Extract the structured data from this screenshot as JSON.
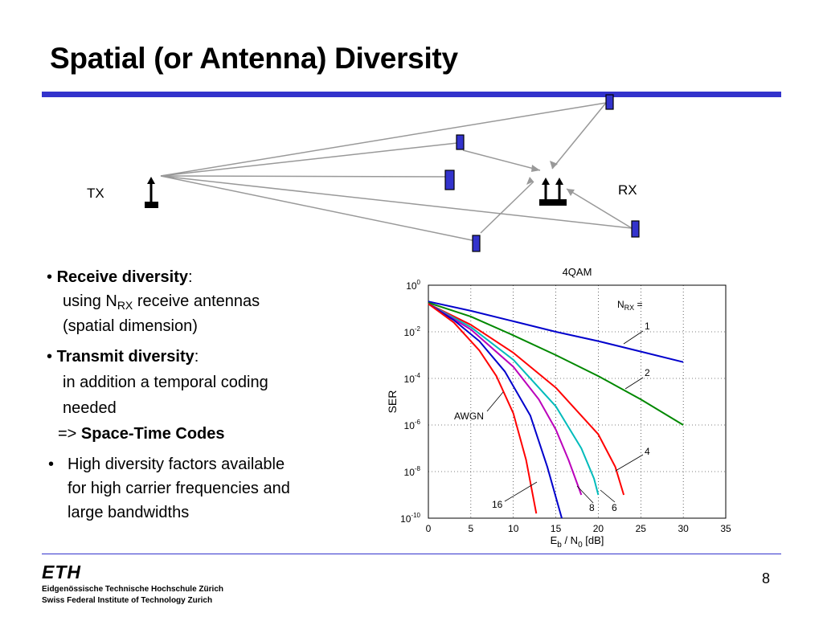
{
  "slide": {
    "title": "Spatial (or Antenna) Diversity",
    "page_number": "8",
    "accent_color": "#3333cc",
    "antenna_color": "#3333cc"
  },
  "diagram": {
    "tx_label": "TX",
    "rx_label": "RX"
  },
  "bullets": {
    "b1_bold": "Receive diversity",
    "b1_colon": ":",
    "b1_line2_pre": "using N",
    "b1_line2_sub": "RX",
    "b1_line2_post": " receive antennas",
    "b1_line3": "(spatial dimension)",
    "b2_bold": "Transmit diversity",
    "b2_colon": ":",
    "b2_line2": "in addition a temporal coding",
    "b2_line3": "needed",
    "b2_line4_pre": "=> ",
    "b2_line4_bold": "Space-Time Codes",
    "b3_line1": "High diversity factors available",
    "b3_line2": "for high carrier frequencies and",
    "b3_line3": "large bandwidths"
  },
  "footer": {
    "logo": "ETH",
    "line1": "Eidgenössische Technische Hochschule Zürich",
    "line2": "Swiss Federal Institute of Technology Zurich"
  },
  "chart_data": {
    "type": "line",
    "title": "4QAM",
    "xlabel_main": "E",
    "xlabel_sub1": "b",
    "xlabel_mid": " / N",
    "xlabel_sub2": "0",
    "xlabel_tail": " [dB]",
    "ylabel": "SER",
    "y_scale": "log",
    "xlim": [
      0,
      35
    ],
    "ylim_exp": [
      -10,
      0
    ],
    "x_ticks": [
      "0",
      "5",
      "10",
      "15",
      "20",
      "25",
      "30",
      "35"
    ],
    "y_ticks_exp": [
      "0",
      "-2",
      "-4",
      "-6",
      "-8",
      "-10"
    ],
    "grid": true,
    "legend_prefix": "N",
    "legend_prefix_sub": "RX",
    "legend_prefix_tail": " =",
    "labels": [
      "1",
      "2",
      "4",
      "6",
      "8",
      "16"
    ],
    "awgn_label": "AWGN",
    "series": [
      {
        "name": "1",
        "color": "#0000cc",
        "x": [
          0,
          5,
          10,
          15,
          20,
          25,
          30
        ],
        "y_exp": [
          -0.7,
          -1.1,
          -1.55,
          -2.0,
          -2.4,
          -2.85,
          -3.3
        ]
      },
      {
        "name": "2",
        "color": "#008800",
        "x": [
          0,
          5,
          10,
          15,
          20,
          25,
          30
        ],
        "y_exp": [
          -0.75,
          -1.35,
          -2.15,
          -3.0,
          -3.9,
          -4.9,
          -6.0
        ]
      },
      {
        "name": "4",
        "color": "#ff0000",
        "x": [
          0,
          5,
          10,
          15,
          20,
          22,
          23
        ],
        "y_exp": [
          -0.8,
          -1.7,
          -2.9,
          -4.4,
          -6.4,
          -7.8,
          -9.0
        ]
      },
      {
        "name": "6",
        "color": "#00bbbb",
        "x": [
          0,
          5,
          10,
          15,
          18,
          19.5,
          20
        ],
        "y_exp": [
          -0.8,
          -1.8,
          -3.2,
          -5.2,
          -7.0,
          -8.3,
          -9.0
        ]
      },
      {
        "name": "8",
        "color": "#bb00bb",
        "x": [
          0,
          5,
          10,
          13,
          15,
          16.5,
          18
        ],
        "y_exp": [
          -0.8,
          -1.9,
          -3.5,
          -4.9,
          -6.2,
          -7.5,
          -9.0
        ]
      },
      {
        "name": "AWGN",
        "color": "#0000cc",
        "x": [
          0,
          3,
          6,
          9,
          12,
          14,
          15.7
        ],
        "y_exp": [
          -0.8,
          -1.5,
          -2.4,
          -3.7,
          -5.6,
          -7.8,
          -10.0
        ]
      },
      {
        "name": "16",
        "color": "#ff0000",
        "x": [
          0,
          3,
          6,
          8,
          10,
          11.5,
          12.7
        ],
        "y_exp": [
          -0.8,
          -1.6,
          -2.8,
          -3.9,
          -5.5,
          -7.5,
          -9.8
        ]
      }
    ]
  }
}
